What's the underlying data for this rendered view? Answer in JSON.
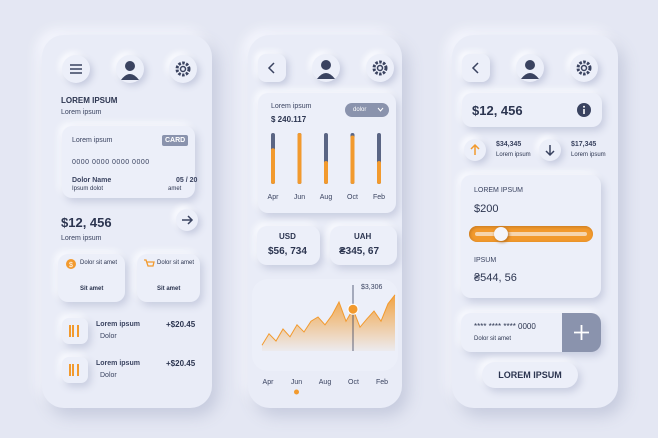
{
  "screen1": {
    "title": "LOREM IPSUM",
    "subtitle": "Lorem ipsum",
    "card": {
      "label": "Lorem ipsum",
      "badge": "CARD",
      "number": "0000 0000 0000 0000",
      "name_label": "Dolor Name",
      "expiry": "05 / 20",
      "name_sub": "Ipsum dolot",
      "expiry_sub": "amet"
    },
    "balance": "$12, 456",
    "balance_label": "Lorem ipsum",
    "tiles": [
      {
        "text": "Dolor sit amet",
        "sub": "Sit amet"
      },
      {
        "text": "Dolor sit amet",
        "sub": "Sit amet"
      }
    ],
    "list": [
      {
        "title": "Lorem ipsum",
        "sub": "Dolor",
        "amount": "+$20.45"
      },
      {
        "title": "Lorem ipsum",
        "sub": "Dolor",
        "amount": "+$20.45"
      }
    ]
  },
  "screen2": {
    "label": "Lorem ipsum",
    "amount": "$ 240.117",
    "dropdown": "dolor",
    "bars": {
      "categories": [
        "Apr",
        "Jun",
        "Aug",
        "Oct",
        "Feb"
      ],
      "values": [
        70,
        100,
        45,
        95,
        45
      ],
      "ylim": [
        0,
        100
      ],
      "color": "#f29a2e"
    },
    "currencies": [
      {
        "name": "USD",
        "value": "$56, 734"
      },
      {
        "name": "UAH",
        "value": "₴345, 67"
      }
    ],
    "area": {
      "annotation": "$3,306",
      "categories": [
        "Apr",
        "Jun",
        "Aug",
        "Oct",
        "Feb"
      ],
      "values": [
        3,
        22,
        10,
        30,
        17,
        37,
        25,
        43,
        50,
        37,
        53,
        75,
        43,
        63,
        33,
        47,
        60,
        43,
        72,
        87
      ],
      "ylim": [
        0,
        100
      ],
      "color": "#f29a2e"
    }
  },
  "screen3": {
    "balance": "$12, 456",
    "stats": [
      {
        "value": "$34,345",
        "label": "Lorem ipsum"
      },
      {
        "value": "$17,345",
        "label": "Lorem ipsum"
      }
    ],
    "card": {
      "title": "LOREM IPSUM",
      "amount": "$200",
      "slider": {
        "value": 23,
        "range": [
          0,
          100
        ]
      },
      "label": "IPSUM",
      "value": "₴544, 56"
    },
    "account": {
      "number": "**** **** **** 0000",
      "label": "Dolor sit amet"
    },
    "button": "LOREM IPSUM"
  }
}
